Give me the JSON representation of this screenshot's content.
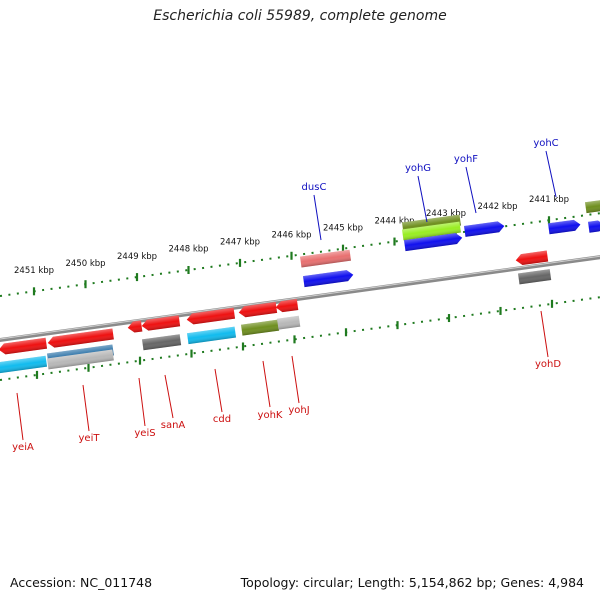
{
  "title": "Escherichia coli 55989, complete genome",
  "footer": {
    "accession": "Accession: NC_011748",
    "summary": "Topology: circular; Length: 5,154,862 bp; Genes: 4,984"
  },
  "colors": {
    "backbone": "#8a8a8a",
    "ticks": "#1f7a1f",
    "forward_label": "#1010c0",
    "reverse_label": "#cc1010",
    "red": "#ee1111",
    "blue": "#1010ee",
    "cyan": "#11bbee",
    "olive": "#6f8f1f",
    "gray": "#666666",
    "steel": "#3377aa",
    "pink": "#e87070",
    "lightgray": "#b8b8b8",
    "lime": "#99ee22"
  },
  "scale": {
    "labels": [
      "2451 kbp",
      "2450 kbp",
      "2449 kbp",
      "2448 kbp",
      "2447 kbp",
      "2446 kbp",
      "2445 kbp",
      "2444 kbp",
      "2443 kbp",
      "2442 kbp",
      "2441 kbp"
    ]
  },
  "forward_genes": [
    {
      "name": "dusC"
    },
    {
      "name": "yohG"
    },
    {
      "name": "yohF"
    },
    {
      "name": "yohC"
    }
  ],
  "reverse_genes": [
    {
      "name": "yeiA"
    },
    {
      "name": "yeiT"
    },
    {
      "name": "yeiS"
    },
    {
      "name": "sanA"
    },
    {
      "name": "cdd"
    },
    {
      "name": "yohK"
    },
    {
      "name": "yohJ"
    },
    {
      "name": "yohD"
    }
  ]
}
